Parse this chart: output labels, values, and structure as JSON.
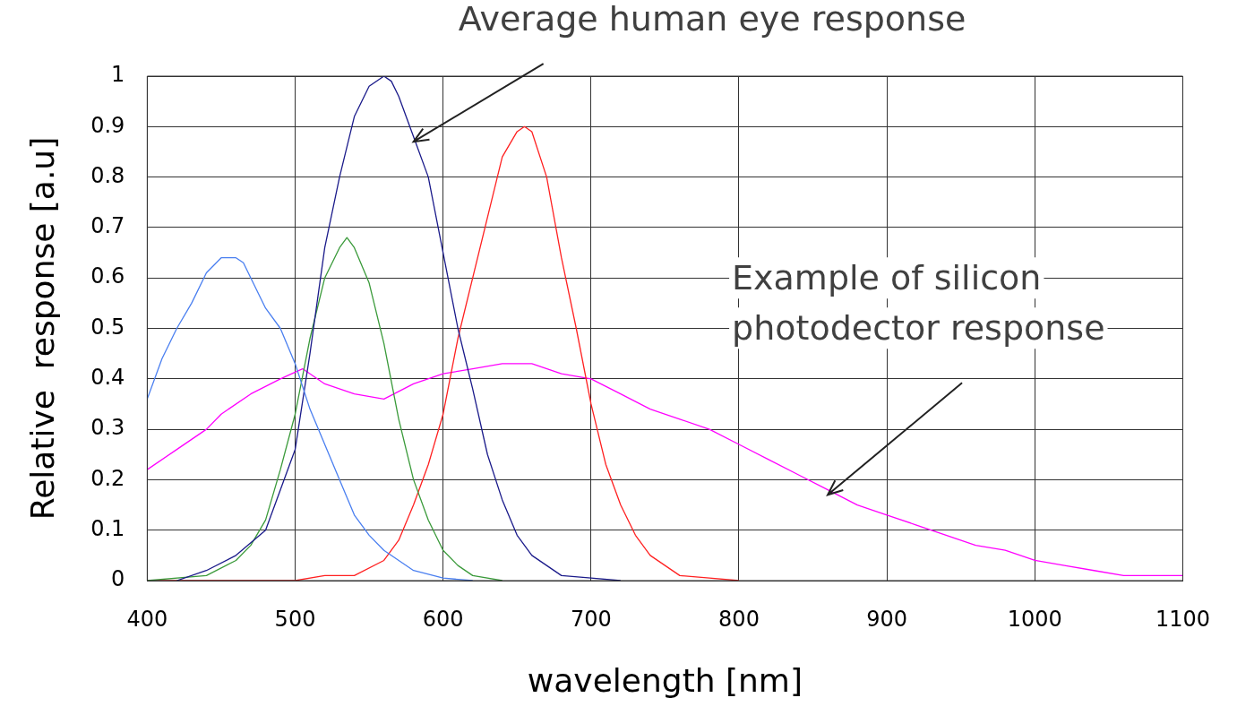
{
  "chart_data": {
    "type": "line",
    "xlabel": "wavelength [nm]",
    "ylabel": "Relative  response [a.u]",
    "xlim": [
      400,
      1100
    ],
    "xticks": [
      400,
      500,
      600,
      700,
      800,
      900,
      1000,
      1100
    ],
    "ylim": [
      0,
      1
    ],
    "yticks": [
      0,
      0.1,
      0.2,
      0.3,
      0.4,
      0.5,
      0.6,
      0.7,
      0.8,
      0.9,
      1
    ],
    "grid": true,
    "legend": false,
    "marker": "none",
    "line_style": "solid",
    "annotations": [
      {
        "text": "Average human eye response",
        "x": 580,
        "y": 0.87
      },
      {
        "text": "Example of silicon photodector response",
        "x": 860,
        "y": 0.17
      }
    ],
    "series": [
      {
        "color": "#4a7ff0",
        "x": [
          400,
          410,
          420,
          430,
          440,
          450,
          460,
          465,
          470,
          480,
          490,
          500,
          510,
          520,
          530,
          540,
          550,
          560,
          570,
          580,
          600,
          620
        ],
        "values": [
          0.36,
          0.44,
          0.5,
          0.55,
          0.61,
          0.64,
          0.64,
          0.63,
          0.6,
          0.54,
          0.5,
          0.43,
          0.34,
          0.27,
          0.2,
          0.13,
          0.09,
          0.06,
          0.04,
          0.02,
          0.005,
          0
        ]
      },
      {
        "color": "#1a1a8a",
        "x": [
          420,
          440,
          460,
          480,
          490,
          500,
          510,
          520,
          530,
          540,
          550,
          560,
          565,
          570,
          580,
          590,
          600,
          610,
          620,
          630,
          640,
          650,
          660,
          670,
          680,
          700,
          720
        ],
        "values": [
          0,
          0.02,
          0.05,
          0.1,
          0.18,
          0.26,
          0.45,
          0.66,
          0.8,
          0.92,
          0.98,
          1,
          0.99,
          0.96,
          0.88,
          0.8,
          0.65,
          0.5,
          0.38,
          0.25,
          0.16,
          0.09,
          0.05,
          0.03,
          0.01,
          0.005,
          0
        ]
      },
      {
        "color": "#3a9a3a",
        "x": [
          400,
          440,
          460,
          470,
          480,
          490,
          500,
          510,
          520,
          530,
          535,
          540,
          550,
          560,
          570,
          580,
          590,
          600,
          610,
          620,
          640
        ],
        "values": [
          0,
          0.01,
          0.04,
          0.07,
          0.12,
          0.22,
          0.33,
          0.48,
          0.6,
          0.66,
          0.68,
          0.66,
          0.59,
          0.47,
          0.32,
          0.2,
          0.12,
          0.06,
          0.03,
          0.01,
          0
        ]
      },
      {
        "color": "#ff2020",
        "x": [
          400,
          500,
          520,
          540,
          560,
          570,
          580,
          590,
          600,
          610,
          620,
          630,
          640,
          650,
          655,
          660,
          670,
          680,
          690,
          700,
          710,
          720,
          730,
          740,
          750,
          760,
          780,
          800
        ],
        "values": [
          0,
          0,
          0.01,
          0.01,
          0.04,
          0.08,
          0.15,
          0.23,
          0.33,
          0.48,
          0.6,
          0.72,
          0.84,
          0.89,
          0.9,
          0.89,
          0.8,
          0.64,
          0.5,
          0.35,
          0.23,
          0.15,
          0.09,
          0.05,
          0.03,
          0.01,
          0.005,
          0
        ]
      },
      {
        "color": "#ff00ff",
        "x": [
          400,
          420,
          440,
          450,
          470,
          490,
          505,
          520,
          540,
          560,
          580,
          600,
          620,
          640,
          660,
          680,
          700,
          720,
          740,
          760,
          780,
          800,
          820,
          840,
          860,
          880,
          900,
          920,
          940,
          960,
          980,
          1000,
          1020,
          1040,
          1060,
          1100
        ],
        "values": [
          0.22,
          0.26,
          0.3,
          0.33,
          0.37,
          0.4,
          0.42,
          0.39,
          0.37,
          0.36,
          0.39,
          0.41,
          0.42,
          0.43,
          0.43,
          0.41,
          0.4,
          0.37,
          0.34,
          0.32,
          0.3,
          0.27,
          0.24,
          0.21,
          0.18,
          0.15,
          0.13,
          0.11,
          0.09,
          0.07,
          0.06,
          0.04,
          0.03,
          0.02,
          0.01,
          0.01
        ]
      }
    ]
  }
}
